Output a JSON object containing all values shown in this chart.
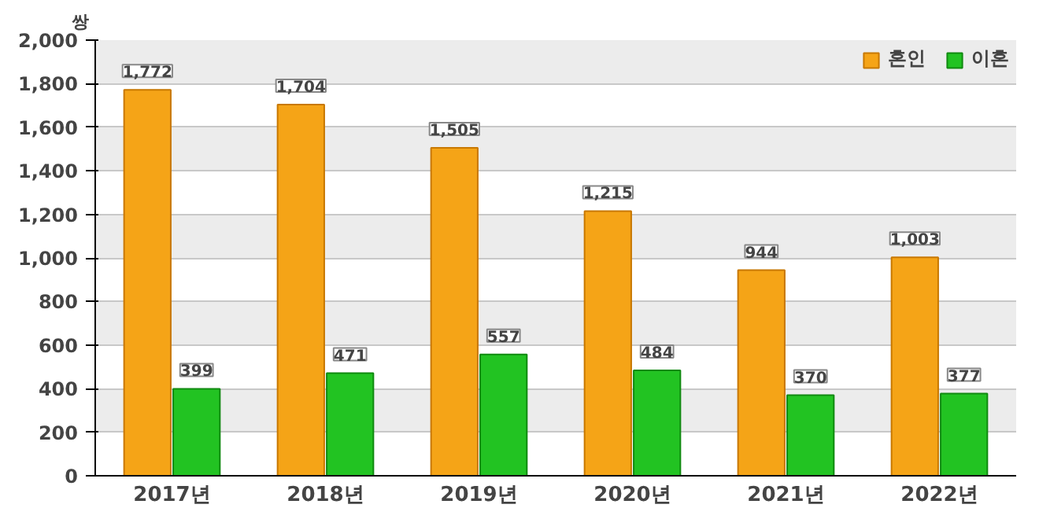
{
  "chart_data": {
    "type": "bar",
    "categories": [
      "2017년",
      "2018년",
      "2019년",
      "2020년",
      "2021년",
      "2022년"
    ],
    "series": [
      {
        "name": "혼인",
        "color": "#f5a417",
        "values": [
          1772,
          1704,
          1505,
          1215,
          944,
          1003
        ],
        "value_labels": [
          "1,772",
          "1,704",
          "1,505",
          "1,215",
          "944",
          "1,003"
        ]
      },
      {
        "name": "이혼",
        "color": "#22c322",
        "values": [
          399,
          471,
          557,
          484,
          370,
          377
        ],
        "value_labels": [
          "399",
          "471",
          "557",
          "484",
          "370",
          "377"
        ]
      }
    ],
    "ylabel": "쌍",
    "ylim": [
      0,
      2000
    ],
    "yticks": [
      0,
      200,
      400,
      600,
      800,
      {
        "value": 1000,
        "label": "1,000"
      },
      {
        "value": 1200,
        "label": "1,200"
      },
      {
        "value": 1400,
        "label": "1,400"
      },
      {
        "value": 1600,
        "label": "1,600"
      },
      {
        "value": 1800,
        "label": "1,800"
      },
      {
        "value": 2000,
        "label": "2,000"
      }
    ],
    "grid": "y",
    "legend": "top right"
  }
}
